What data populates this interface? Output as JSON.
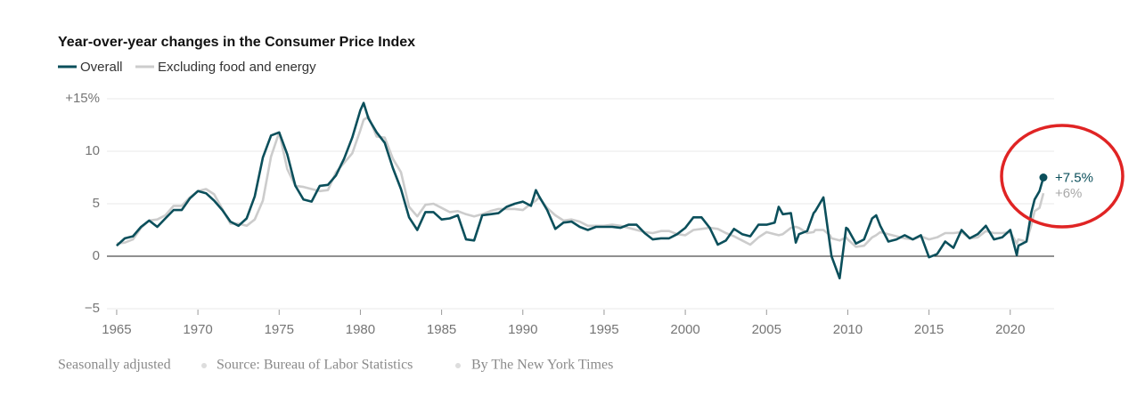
{
  "chart_data": {
    "type": "line",
    "title": "Year-over-year changes in the Consumer Price Index",
    "footer": [
      "Seasonally adjusted",
      "Source: Bureau of Labor Statistics",
      "By The New York Times"
    ],
    "xlim": [
      1964.4,
      2022.7
    ],
    "xticks": [
      1965,
      1970,
      1975,
      1980,
      1985,
      1990,
      1995,
      2000,
      2005,
      2010,
      2015,
      2020
    ],
    "ylim": [
      -5,
      15
    ],
    "yticks": [
      {
        "value": 15,
        "label": "+15%"
      },
      10,
      5,
      0,
      {
        "value": -5,
        "label": "−5"
      }
    ],
    "grid": true,
    "zero_line": true,
    "x": [
      1965,
      1965.5,
      1966,
      1966.5,
      1967,
      1967.5,
      1968,
      1968.5,
      1969,
      1969.5,
      1970,
      1970.5,
      1971,
      1971.5,
      1972,
      1972.5,
      1973,
      1973.5,
      1974,
      1974.5,
      1975,
      1975.5,
      1976,
      1976.5,
      1977,
      1977.5,
      1978,
      1978.5,
      1979,
      1979.5,
      1980,
      1980.2,
      1980.5,
      1981,
      1981.5,
      1982,
      1982.5,
      1983,
      1983.5,
      1984,
      1984.5,
      1985,
      1985.5,
      1986,
      1986.5,
      1987,
      1987.5,
      1988,
      1988.5,
      1989,
      1989.5,
      1990,
      1990.5,
      1990.8,
      1991,
      1991.5,
      1992,
      1992.5,
      1993,
      1993.5,
      1994,
      1994.5,
      1995,
      1995.5,
      1996,
      1996.5,
      1997,
      1997.5,
      1998,
      1998.5,
      1999,
      1999.5,
      2000,
      2000.5,
      2001,
      2001.5,
      2002,
      2002.5,
      2003,
      2003.5,
      2004,
      2004.5,
      2005,
      2005.5,
      2005.75,
      2006,
      2006.5,
      2006.8,
      2007,
      2007.5,
      2007.9,
      2008,
      2008.5,
      2008.9,
      2009,
      2009.5,
      2009.9,
      2010,
      2010.5,
      2011,
      2011.5,
      2011.75,
      2012,
      2012.5,
      2013,
      2013.5,
      2014,
      2014.5,
      2015,
      2015.5,
      2016,
      2016.5,
      2017,
      2017.5,
      2018,
      2018.5,
      2019,
      2019.5,
      2020,
      2020.4,
      2020.5,
      2021,
      2021.3,
      2021.5,
      2021.8,
      2022.04
    ],
    "series": [
      {
        "name": "Overall",
        "color": "#0b4f5b",
        "end_marker": true,
        "values": [
          1.0,
          1.7,
          1.9,
          2.8,
          3.4,
          2.8,
          3.6,
          4.4,
          4.4,
          5.5,
          6.2,
          6.0,
          5.3,
          4.4,
          3.3,
          2.9,
          3.6,
          5.7,
          9.4,
          11.5,
          11.8,
          9.7,
          6.7,
          5.4,
          5.2,
          6.7,
          6.8,
          7.7,
          9.3,
          11.3,
          13.9,
          14.6,
          13.1,
          11.8,
          10.8,
          8.4,
          6.4,
          3.7,
          2.5,
          4.2,
          4.2,
          3.5,
          3.6,
          3.9,
          1.6,
          1.5,
          3.9,
          4.0,
          4.1,
          4.7,
          5.0,
          5.2,
          4.8,
          6.3,
          5.7,
          4.4,
          2.6,
          3.2,
          3.3,
          2.8,
          2.5,
          2.8,
          2.8,
          2.8,
          2.7,
          3.0,
          3.0,
          2.2,
          1.6,
          1.7,
          1.7,
          2.1,
          2.7,
          3.7,
          3.7,
          2.7,
          1.1,
          1.5,
          2.6,
          2.1,
          1.9,
          3.0,
          3.0,
          3.2,
          4.7,
          4.0,
          4.1,
          1.3,
          2.1,
          2.4,
          4.1,
          4.3,
          5.6,
          1.1,
          0.0,
          -2.1,
          2.7,
          2.6,
          1.2,
          1.6,
          3.6,
          3.9,
          2.9,
          1.4,
          1.6,
          2.0,
          1.6,
          2.0,
          -0.1,
          0.2,
          1.4,
          0.8,
          2.5,
          1.7,
          2.1,
          2.9,
          1.6,
          1.8,
          2.5,
          0.1,
          1.0,
          1.4,
          4.2,
          5.4,
          6.2,
          7.5
        ],
        "value_labels": [
          null,
          null,
          null,
          null,
          null,
          null,
          null,
          null,
          null,
          null,
          null,
          null,
          null,
          null,
          null,
          null,
          null,
          null,
          null,
          null,
          null,
          null,
          null,
          null,
          null,
          null,
          null,
          null,
          null,
          null,
          null,
          null,
          null,
          null,
          null,
          null,
          null,
          null,
          null,
          null,
          null,
          null,
          null,
          null,
          null,
          null,
          null,
          null,
          null,
          null,
          null,
          null,
          null,
          null,
          null,
          null,
          null,
          null,
          null,
          null,
          null,
          null,
          null,
          null,
          null,
          null,
          null,
          null,
          null,
          null,
          null,
          null,
          null,
          null,
          null,
          null,
          null,
          null,
          null,
          null,
          null,
          null,
          null,
          null,
          null,
          null,
          null,
          null,
          null,
          null,
          null,
          null,
          null,
          null,
          null,
          null,
          null,
          null,
          null,
          null,
          null,
          null,
          null,
          null,
          null,
          null,
          null,
          null,
          null,
          null,
          null,
          null,
          null,
          null,
          null,
          null,
          null,
          null,
          null,
          null,
          null,
          null,
          null,
          null,
          null,
          "+7.5%"
        ]
      },
      {
        "name": "Excluding food and energy",
        "color": "#cccccc",
        "label_color": "#a8a8a8",
        "values": [
          1.2,
          1.3,
          1.6,
          2.7,
          3.4,
          3.5,
          3.9,
          4.8,
          4.8,
          5.6,
          6.2,
          6.4,
          5.9,
          4.5,
          3.1,
          3.1,
          2.9,
          3.5,
          5.3,
          9.5,
          11.8,
          8.3,
          6.7,
          6.6,
          6.4,
          6.2,
          6.3,
          8.0,
          8.9,
          9.8,
          12.0,
          13.0,
          13.3,
          11.4,
          11.3,
          9.3,
          8.0,
          4.7,
          3.8,
          4.9,
          5.0,
          4.6,
          4.2,
          4.3,
          4.0,
          3.8,
          4.0,
          4.3,
          4.5,
          4.5,
          4.5,
          4.4,
          5.0,
          5.3,
          5.6,
          4.6,
          3.9,
          3.4,
          3.5,
          3.3,
          2.9,
          2.9,
          2.9,
          3.0,
          2.9,
          2.7,
          2.5,
          2.3,
          2.2,
          2.4,
          2.4,
          2.1,
          2.0,
          2.5,
          2.6,
          2.7,
          2.6,
          2.2,
          1.9,
          1.5,
          1.1,
          1.8,
          2.3,
          2.1,
          2.0,
          2.1,
          2.7,
          2.8,
          2.7,
          2.2,
          2.3,
          2.5,
          2.5,
          2.0,
          1.7,
          1.5,
          1.8,
          1.6,
          0.9,
          1.0,
          1.8,
          2.0,
          2.3,
          2.1,
          1.9,
          1.7,
          1.6,
          1.9,
          1.6,
          1.8,
          2.2,
          2.2,
          2.3,
          1.7,
          1.8,
          2.4,
          2.2,
          2.2,
          2.3,
          1.2,
          1.6,
          1.4,
          3.0,
          4.3,
          4.6,
          6.0
        ],
        "value_labels": [
          null,
          null,
          null,
          null,
          null,
          null,
          null,
          null,
          null,
          null,
          null,
          null,
          null,
          null,
          null,
          null,
          null,
          null,
          null,
          null,
          null,
          null,
          null,
          null,
          null,
          null,
          null,
          null,
          null,
          null,
          null,
          null,
          null,
          null,
          null,
          null,
          null,
          null,
          null,
          null,
          null,
          null,
          null,
          null,
          null,
          null,
          null,
          null,
          null,
          null,
          null,
          null,
          null,
          null,
          null,
          null,
          null,
          null,
          null,
          null,
          null,
          null,
          null,
          null,
          null,
          null,
          null,
          null,
          null,
          null,
          null,
          null,
          null,
          null,
          null,
          null,
          null,
          null,
          null,
          null,
          null,
          null,
          null,
          null,
          null,
          null,
          null,
          null,
          null,
          null,
          null,
          null,
          null,
          null,
          null,
          null,
          null,
          null,
          null,
          null,
          null,
          null,
          null,
          null,
          null,
          null,
          null,
          null,
          null,
          null,
          null,
          null,
          null,
          null,
          null,
          null,
          null,
          null,
          null,
          null,
          null,
          null,
          null,
          null,
          null,
          "+6%"
        ]
      }
    ]
  }
}
